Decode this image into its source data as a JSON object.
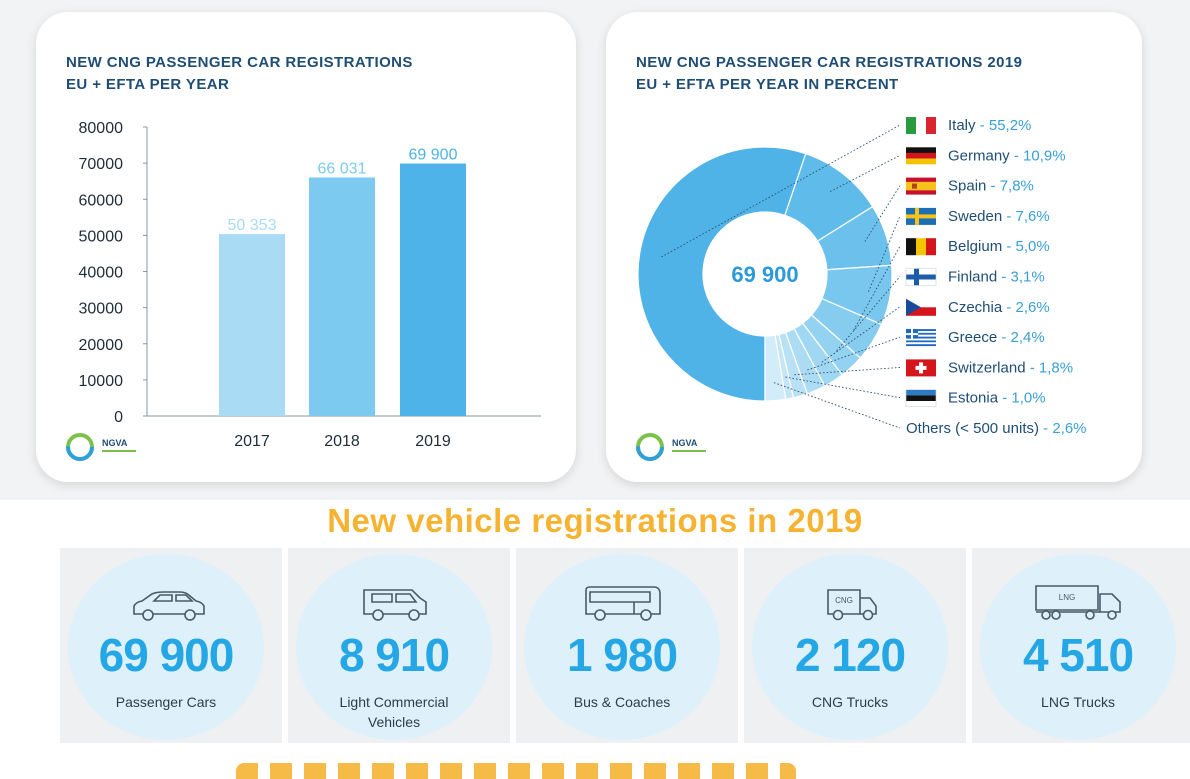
{
  "left_card": {
    "title_line1": "NEW CNG PASSENGER CAR REGISTRATIONS",
    "title_line2": "EU + EFTA PER YEAR",
    "logo_text": "NGVA"
  },
  "right_card": {
    "title_line1": "NEW CNG PASSENGER CAR REGISTRATIONS 2019",
    "title_line2": "EU + EFTA PER YEAR IN PERCENT",
    "logo_text": "NGVA"
  },
  "chart_data": [
    {
      "type": "bar",
      "title": "NEW CNG PASSENGER CAR REGISTRATIONS EU + EFTA PER YEAR",
      "categories": [
        "2017",
        "2018",
        "2019"
      ],
      "values": [
        50353,
        66031,
        69900
      ],
      "value_labels": [
        "50 353",
        "66 031",
        "69 900"
      ],
      "ylim": [
        0,
        80000
      ],
      "yticks": [
        0,
        10000,
        20000,
        30000,
        40000,
        50000,
        60000,
        70000,
        80000
      ],
      "bar_colors": [
        "#a9dcf4",
        "#7ccaf0",
        "#4eb3e8"
      ],
      "value_label_colors": [
        "#a9dcf4",
        "#7ccaf0",
        "#4eb3e8"
      ]
    },
    {
      "type": "pie",
      "title": "NEW CNG PASSENGER CAR REGISTRATIONS 2019 EU + EFTA PER YEAR IN PERCENT",
      "center_label": "69 900",
      "slices": [
        {
          "country": "Italy",
          "pct_label": "55,2%",
          "value": 55.2,
          "color": "#4fb3e8",
          "flag": "italy-flag"
        },
        {
          "country": "Germany",
          "pct_label": "10,9%",
          "value": 10.9,
          "color": "#5fbbea",
          "flag": "germany-flag"
        },
        {
          "country": "Spain",
          "pct_label": "7,8%",
          "value": 7.8,
          "color": "#6cc1ec",
          "flag": "spain-flag"
        },
        {
          "country": "Sweden",
          "pct_label": "7,6%",
          "value": 7.6,
          "color": "#79c7ee",
          "flag": "sweden-flag"
        },
        {
          "country": "Belgium",
          "pct_label": "5,0%",
          "value": 5.0,
          "color": "#86ccef",
          "flag": "belgium-flag"
        },
        {
          "country": "Finland",
          "pct_label": "3,1%",
          "value": 3.1,
          "color": "#93d2f1",
          "flag": "finland-flag"
        },
        {
          "country": "Czechia",
          "pct_label": "2,6%",
          "value": 2.6,
          "color": "#a0d8f3",
          "flag": "czechia-flag"
        },
        {
          "country": "Greece",
          "pct_label": "2,4%",
          "value": 2.4,
          "color": "#acdcf4",
          "flag": "greece-flag"
        },
        {
          "country": "Switzerland",
          "pct_label": "1,8%",
          "value": 1.8,
          "color": "#b8e1f5",
          "flag": "switzerland-flag"
        },
        {
          "country": "Estonia",
          "pct_label": "1,0%",
          "value": 1.0,
          "color": "#c4e6f7",
          "flag": "estonia-flag"
        },
        {
          "country": "Others (< 500 units)",
          "pct_label": "2,6%",
          "value": 2.6,
          "color": "#d2ecf9",
          "flag": ""
        }
      ],
      "label_color": "#1f4d74",
      "pct_color": "#3a9fd8"
    }
  ],
  "headline": "New vehicle registrations in 2019",
  "tiles": [
    {
      "number": "69 900",
      "label": "Passenger Cars",
      "icon": "car-icon"
    },
    {
      "number": "8 910",
      "label": "Light Commercial Vehicles",
      "icon": "van-icon"
    },
    {
      "number": "1 980",
      "label": "Bus & Coaches",
      "icon": "bus-icon"
    },
    {
      "number": "2 120",
      "label": "CNG Trucks",
      "icon": "cng-truck-icon",
      "badge": "CNG"
    },
    {
      "number": "4 510",
      "label": "LNG Trucks",
      "icon": "lng-truck-icon",
      "badge": "LNG"
    }
  ]
}
